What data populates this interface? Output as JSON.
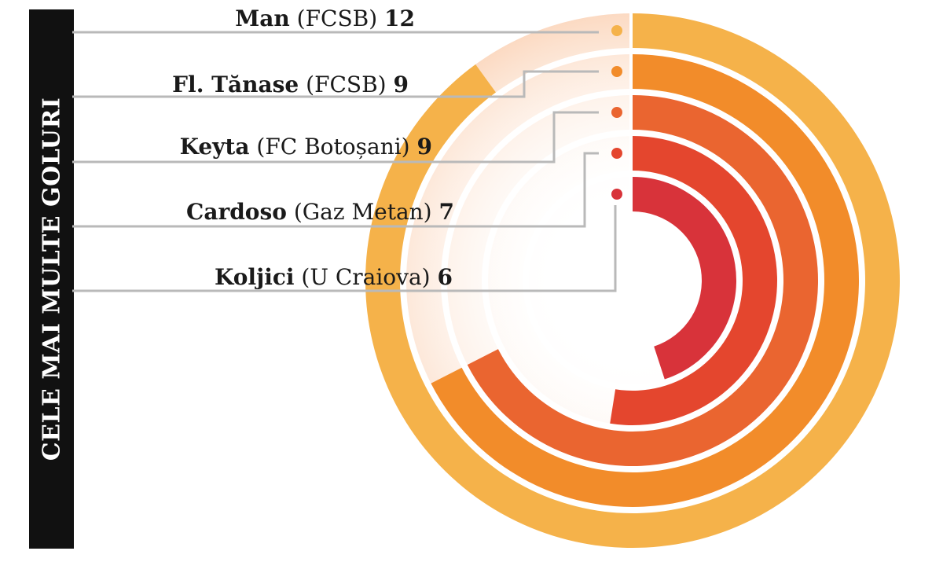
{
  "side_title": "CELE MAI MULTE GOLURI",
  "chart_data": {
    "type": "radial-bar",
    "title": "CELE MAI MULTE GOLURI",
    "max_value": 12,
    "series": [
      {
        "name": "Man",
        "team": "(FCSB)",
        "value": 12,
        "color": "#F5B24A"
      },
      {
        "name": "Fl. Tănase",
        "team": "(FCSB)",
        "value": 9,
        "color": "#F28C2A"
      },
      {
        "name": "Keyta",
        "team": "(FC Botoșani)",
        "value": 9,
        "color": "#EA6530"
      },
      {
        "name": "Cardoso",
        "team": "(Gaz Metan)",
        "value": 7,
        "color": "#E4462E"
      },
      {
        "name": "Koljici",
        "team": "(U Craiova)",
        "value": 6,
        "color": "#D8333A"
      }
    ]
  }
}
